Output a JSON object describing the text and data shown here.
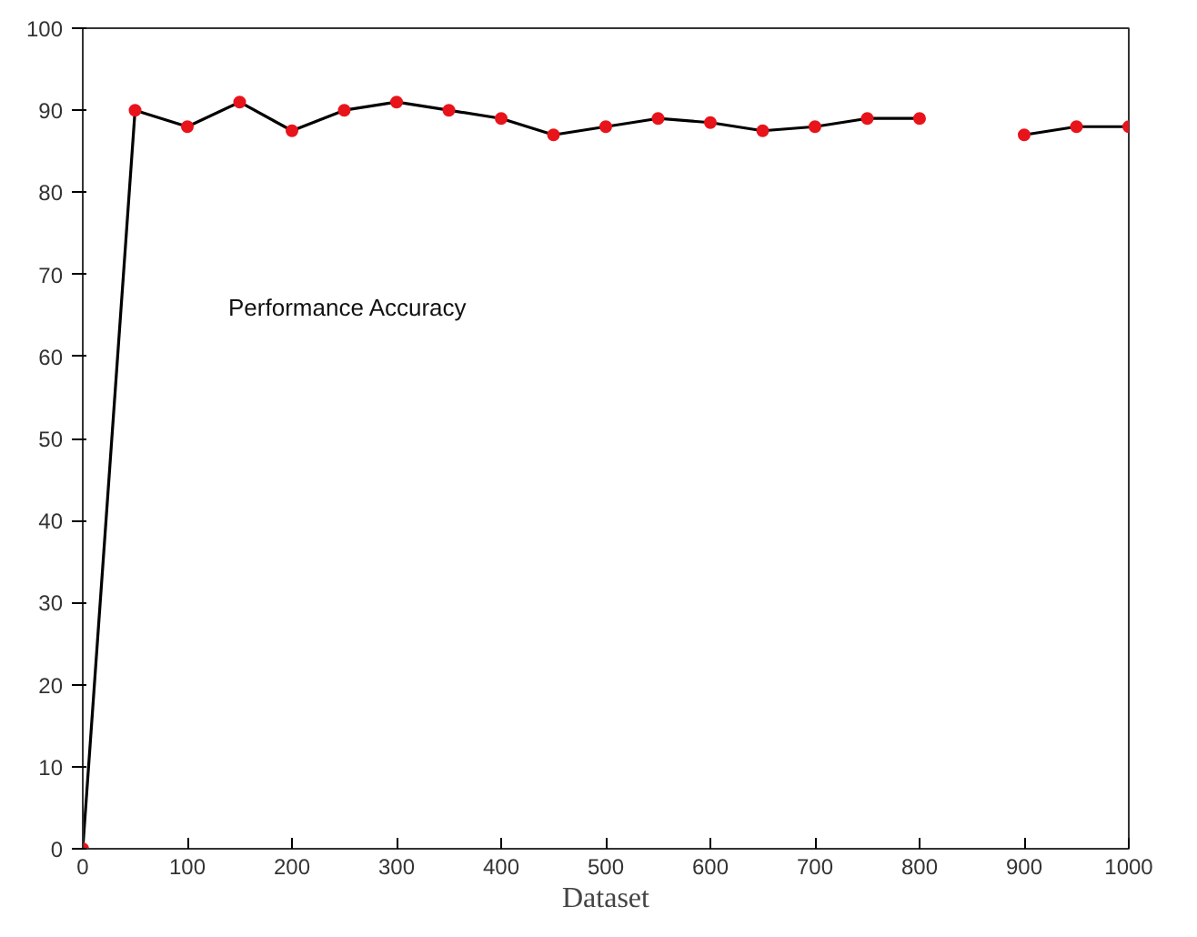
{
  "chart_data": {
    "type": "line",
    "xlabel": "Dataset",
    "annotations": [
      "Performance Accuracy"
    ],
    "x": [
      0,
      50,
      100,
      150,
      200,
      250,
      300,
      350,
      400,
      450,
      500,
      550,
      600,
      650,
      700,
      750,
      800,
      850,
      900,
      950,
      1000
    ],
    "series": [
      {
        "color": "#000000",
        "values": [
          0,
          90,
          88,
          91,
          87.5,
          90,
          91,
          90,
          89,
          87,
          88,
          89,
          88.5,
          87.5,
          88,
          89,
          89,
          null,
          87,
          88,
          88
        ]
      }
    ],
    "marker": "circle",
    "line_style": "solid",
    "grid": false,
    "xlim": [
      0,
      1000
    ],
    "ylim": [
      0,
      100
    ],
    "xticks": [
      0,
      100,
      200,
      300,
      400,
      500,
      600,
      700,
      800,
      900,
      1000
    ],
    "yticks": [
      0,
      10,
      20,
      30,
      40,
      50,
      60,
      70,
      80,
      90,
      100
    ]
  }
}
